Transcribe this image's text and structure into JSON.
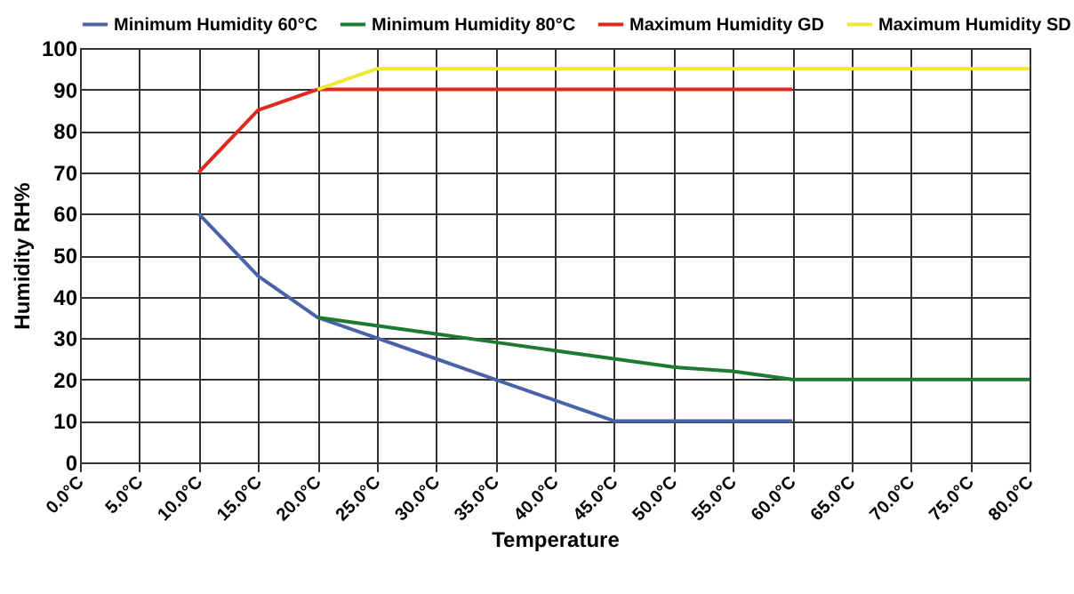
{
  "chart_data": {
    "type": "line",
    "xlabel": "Temperature",
    "ylabel": "Humidity RH%",
    "categories": [
      "0.0°C",
      "5.0°C",
      "10.0°C",
      "15.0°C",
      "20.0°C",
      "25.0°C",
      "30.0°C",
      "35.0°C",
      "40.0°C",
      "45.0°C",
      "50.0°C",
      "55.0°C",
      "60.0°C",
      "65.0°C",
      "70.0°C",
      "75.0°C",
      "80.0°C"
    ],
    "series": [
      {
        "name": "Minimum Humidity 60°C",
        "color": "#4a62a8",
        "values": [
          null,
          null,
          60,
          45,
          35,
          30,
          25,
          20,
          15,
          10,
          10,
          10,
          10,
          null,
          null,
          null,
          null
        ]
      },
      {
        "name": "Minimum Humidity 80°C",
        "color": "#1e7a32",
        "values": [
          null,
          null,
          null,
          null,
          35,
          33,
          31,
          29,
          27,
          25,
          23,
          22,
          20,
          20,
          20,
          20,
          20
        ]
      },
      {
        "name": "Maximum Humidity GD",
        "color": "#e0281e",
        "values": [
          null,
          null,
          70,
          85,
          90,
          90,
          90,
          90,
          90,
          90,
          90,
          90,
          90,
          null,
          null,
          null,
          null
        ]
      },
      {
        "name": "Maximum Humidity SD",
        "color": "#f2e636",
        "values": [
          null,
          null,
          null,
          null,
          90,
          95,
          95,
          95,
          95,
          95,
          95,
          95,
          95,
          95,
          95,
          95,
          95
        ]
      }
    ],
    "ylim": [
      0,
      100
    ],
    "yticks": [
      0,
      10,
      20,
      30,
      40,
      50,
      60,
      70,
      80,
      90,
      100
    ],
    "grid": true,
    "legend": "top",
    "marker": "none",
    "line_style": "solid"
  }
}
